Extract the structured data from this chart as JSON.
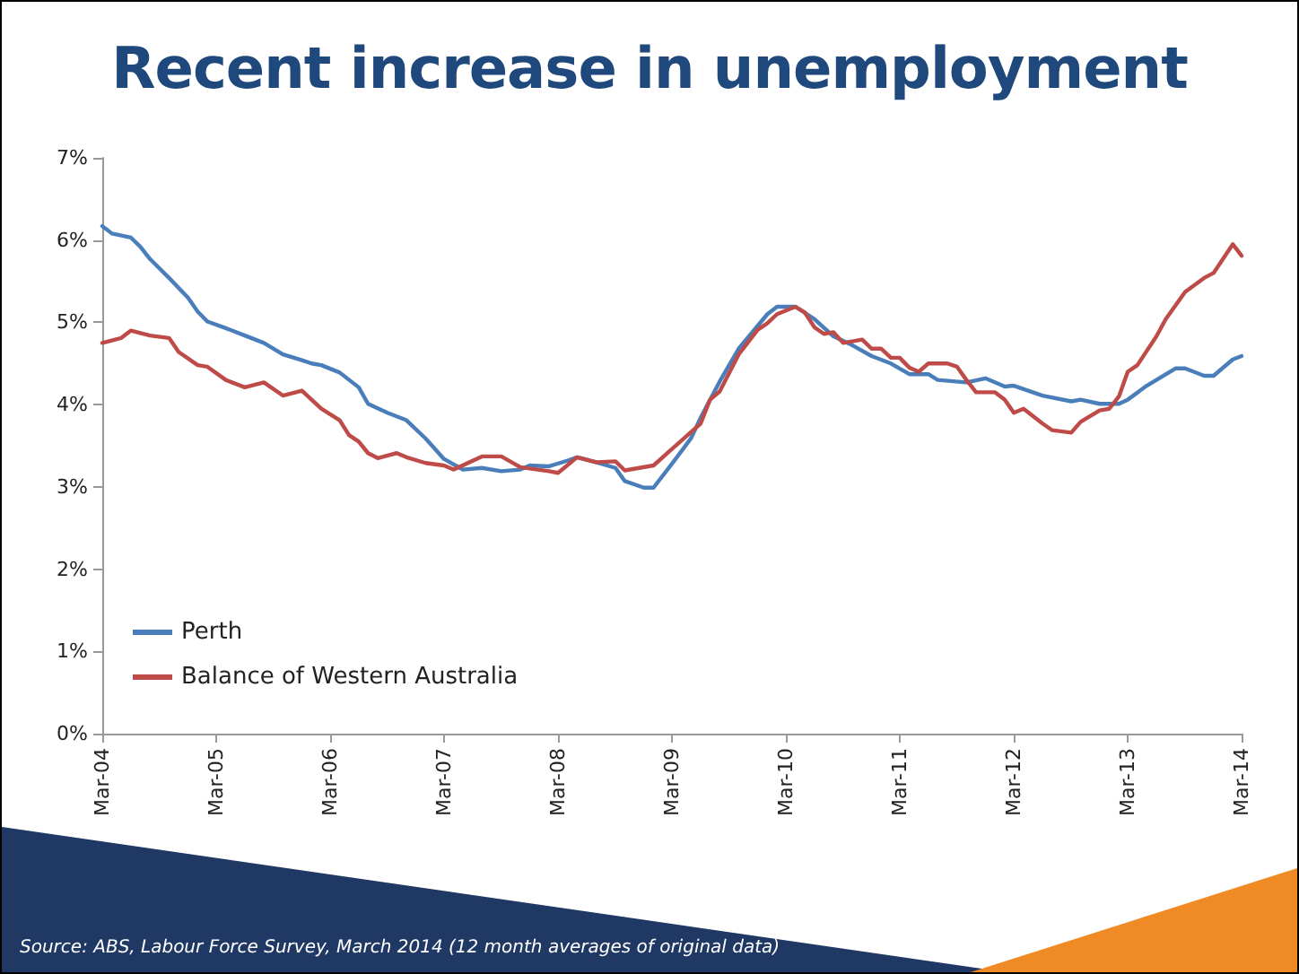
{
  "chart_data": {
    "type": "line",
    "title": "Recent increase in unemployment",
    "annotations": [
      "Source: ABS, Labour Force Survey, March 2014 (12 month averages of original data)"
    ],
    "xlim": [
      "2004-03",
      "2014-03"
    ],
    "xticks": [
      {
        "value": "2004-03",
        "label": "Mar-04"
      },
      {
        "value": "2005-03",
        "label": "Mar-05"
      },
      {
        "value": "2006-03",
        "label": "Mar-06"
      },
      {
        "value": "2007-03",
        "label": "Mar-07"
      },
      {
        "value": "2008-03",
        "label": "Mar-08"
      },
      {
        "value": "2009-03",
        "label": "Mar-09"
      },
      {
        "value": "2010-03",
        "label": "Mar-10"
      },
      {
        "value": "2011-03",
        "label": "Mar-11"
      },
      {
        "value": "2012-03",
        "label": "Mar-12"
      },
      {
        "value": "2013-03",
        "label": "Mar-13"
      },
      {
        "value": "2014-03",
        "label": "Mar-14"
      }
    ],
    "ylim": [
      0,
      7
    ],
    "yticks": [
      {
        "value": 0,
        "label": "0%"
      },
      {
        "value": 1,
        "label": "1%"
      },
      {
        "value": 2,
        "label": "2%"
      },
      {
        "value": 3,
        "label": "3%"
      },
      {
        "value": 4,
        "label": "4%"
      },
      {
        "value": 5,
        "label": "5%"
      },
      {
        "value": 6,
        "label": "6%"
      },
      {
        "value": 7,
        "label": "7%"
      }
    ],
    "grid": false,
    "legend": "bottom left",
    "marker": "none",
    "line_style": "solid",
    "series": [
      {
        "name": "Perth",
        "color": "#4a7ebb",
        "x": [
          "2004-03",
          "2004-04",
          "2004-06",
          "2004-07",
          "2004-08",
          "2004-10",
          "2004-12",
          "2005-01",
          "2005-02",
          "2005-04",
          "2005-06",
          "2005-08",
          "2005-10",
          "2005-12",
          "2006-01",
          "2006-02",
          "2006-04",
          "2006-06",
          "2006-07",
          "2006-09",
          "2006-11",
          "2007-01",
          "2007-03",
          "2007-05",
          "2007-07",
          "2007-09",
          "2007-11",
          "2007-12",
          "2008-02",
          "2008-04",
          "2008-05",
          "2008-07",
          "2008-09",
          "2008-10",
          "2008-12",
          "2009-01",
          "2009-03",
          "2009-05",
          "2009-06",
          "2009-08",
          "2009-10",
          "2010-01",
          "2010-02",
          "2010-04",
          "2010-06",
          "2010-08",
          "2010-10",
          "2010-12",
          "2011-02",
          "2011-04",
          "2011-06",
          "2011-07",
          "2011-10",
          "2011-12",
          "2012-02",
          "2012-03",
          "2012-06",
          "2012-09",
          "2012-10",
          "2012-12",
          "2013-02",
          "2013-03",
          "2013-05",
          "2013-08",
          "2013-09",
          "2013-11",
          "2013-12",
          "2014-02",
          "2014-03"
        ],
        "values": [
          6.17,
          6.08,
          6.03,
          5.92,
          5.77,
          5.54,
          5.3,
          5.13,
          5.01,
          4.93,
          4.84,
          4.75,
          4.61,
          4.54,
          4.5,
          4.48,
          4.39,
          4.21,
          4.01,
          3.9,
          3.81,
          3.59,
          3.34,
          3.21,
          3.23,
          3.19,
          3.21,
          3.26,
          3.25,
          3.32,
          3.36,
          3.3,
          3.23,
          3.07,
          2.99,
          2.99,
          3.28,
          3.59,
          3.84,
          4.28,
          4.68,
          5.1,
          5.19,
          5.19,
          5.04,
          4.83,
          4.72,
          4.59,
          4.5,
          4.37,
          4.37,
          4.3,
          4.27,
          4.32,
          4.22,
          4.23,
          4.11,
          4.04,
          4.06,
          4.01,
          4.01,
          4.06,
          4.23,
          4.44,
          4.44,
          4.35,
          4.35,
          4.55,
          4.59
        ]
      },
      {
        "name": "Balance of Western Australia",
        "color": "#be4b48",
        "x": [
          "2004-03",
          "2004-05",
          "2004-06",
          "2004-08",
          "2004-10",
          "2004-11",
          "2005-01",
          "2005-02",
          "2005-04",
          "2005-06",
          "2005-08",
          "2005-10",
          "2005-12",
          "2006-02",
          "2006-04",
          "2006-05",
          "2006-06",
          "2006-07",
          "2006-08",
          "2006-10",
          "2006-11",
          "2007-01",
          "2007-03",
          "2007-04",
          "2007-07",
          "2007-09",
          "2007-11",
          "2008-02",
          "2008-03",
          "2008-05",
          "2008-07",
          "2008-09",
          "2008-10",
          "2009-01",
          "2009-03",
          "2009-06",
          "2009-07",
          "2009-08",
          "2009-10",
          "2009-12",
          "2010-01",
          "2010-02",
          "2010-04",
          "2010-05",
          "2010-06",
          "2010-07",
          "2010-08",
          "2010-09",
          "2010-11",
          "2010-12",
          "2011-01",
          "2011-02",
          "2011-03",
          "2011-04",
          "2011-05",
          "2011-06",
          "2011-08",
          "2011-09",
          "2011-10",
          "2011-11",
          "2012-01",
          "2012-02",
          "2012-03",
          "2012-04",
          "2012-06",
          "2012-07",
          "2012-09",
          "2012-10",
          "2012-12",
          "2013-01",
          "2013-02",
          "2013-03",
          "2013-04",
          "2013-06",
          "2013-07",
          "2013-09",
          "2013-11",
          "2013-12",
          "2014-02",
          "2014-03"
        ],
        "values": [
          4.75,
          4.81,
          4.9,
          4.84,
          4.81,
          4.64,
          4.48,
          4.46,
          4.3,
          4.21,
          4.27,
          4.11,
          4.17,
          3.95,
          3.81,
          3.63,
          3.55,
          3.41,
          3.35,
          3.41,
          3.36,
          3.29,
          3.26,
          3.21,
          3.37,
          3.37,
          3.24,
          3.19,
          3.17,
          3.36,
          3.3,
          3.31,
          3.2,
          3.26,
          3.46,
          3.77,
          4.06,
          4.16,
          4.61,
          4.91,
          4.99,
          5.1,
          5.19,
          5.12,
          4.94,
          4.86,
          4.88,
          4.75,
          4.79,
          4.68,
          4.68,
          4.57,
          4.57,
          4.45,
          4.4,
          4.5,
          4.5,
          4.46,
          4.3,
          4.15,
          4.15,
          4.06,
          3.9,
          3.95,
          3.77,
          3.69,
          3.66,
          3.79,
          3.93,
          3.95,
          4.1,
          4.4,
          4.48,
          4.83,
          5.04,
          5.37,
          5.54,
          5.6,
          5.95,
          5.81
        ]
      }
    ]
  }
}
